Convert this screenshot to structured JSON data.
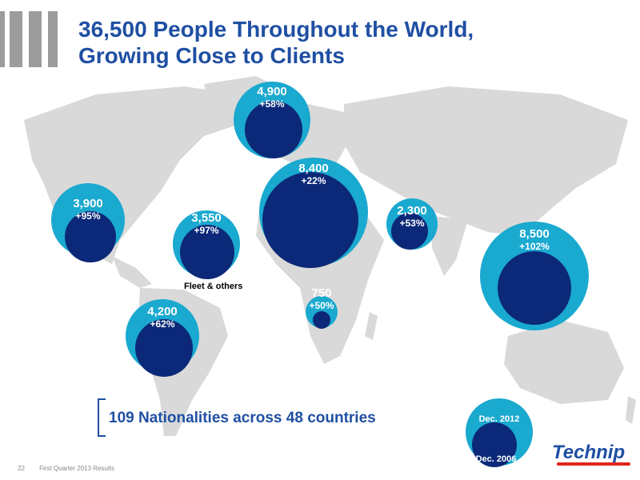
{
  "title": {
    "line1": "36,500 People Throughout the World,",
    "line2": "Growing Close to Clients"
  },
  "regions": [
    {
      "id": "us",
      "value": "3,900",
      "change": "+95%"
    },
    {
      "id": "north-sea",
      "value": "4,900",
      "change": "+58%"
    },
    {
      "id": "europe",
      "value": "8,400",
      "change": "+22%"
    },
    {
      "id": "middle-east",
      "value": "2,300",
      "change": "+53%"
    },
    {
      "id": "asia-pacific",
      "value": "8,500",
      "change": "+102%"
    },
    {
      "id": "fleet",
      "value": "3,550",
      "change": "+97%"
    },
    {
      "id": "africa",
      "value": "750",
      "change": "+50%"
    },
    {
      "id": "brazil",
      "value": "4,200",
      "change": "+62%"
    }
  ],
  "fleet_label": "Fleet & others",
  "nationalities": "109 Nationalities across 48 countries",
  "legend": {
    "outer": "Dec. 2012",
    "inner": "Dec. 2006"
  },
  "footer": {
    "page": "22",
    "text": "First Quarter 2013 Results"
  },
  "logo": "Technip",
  "colors": {
    "outer": "#1aa9cf",
    "inner": "#0c2878",
    "title": "#1f4fa3",
    "map": "#d9d9d9"
  }
}
